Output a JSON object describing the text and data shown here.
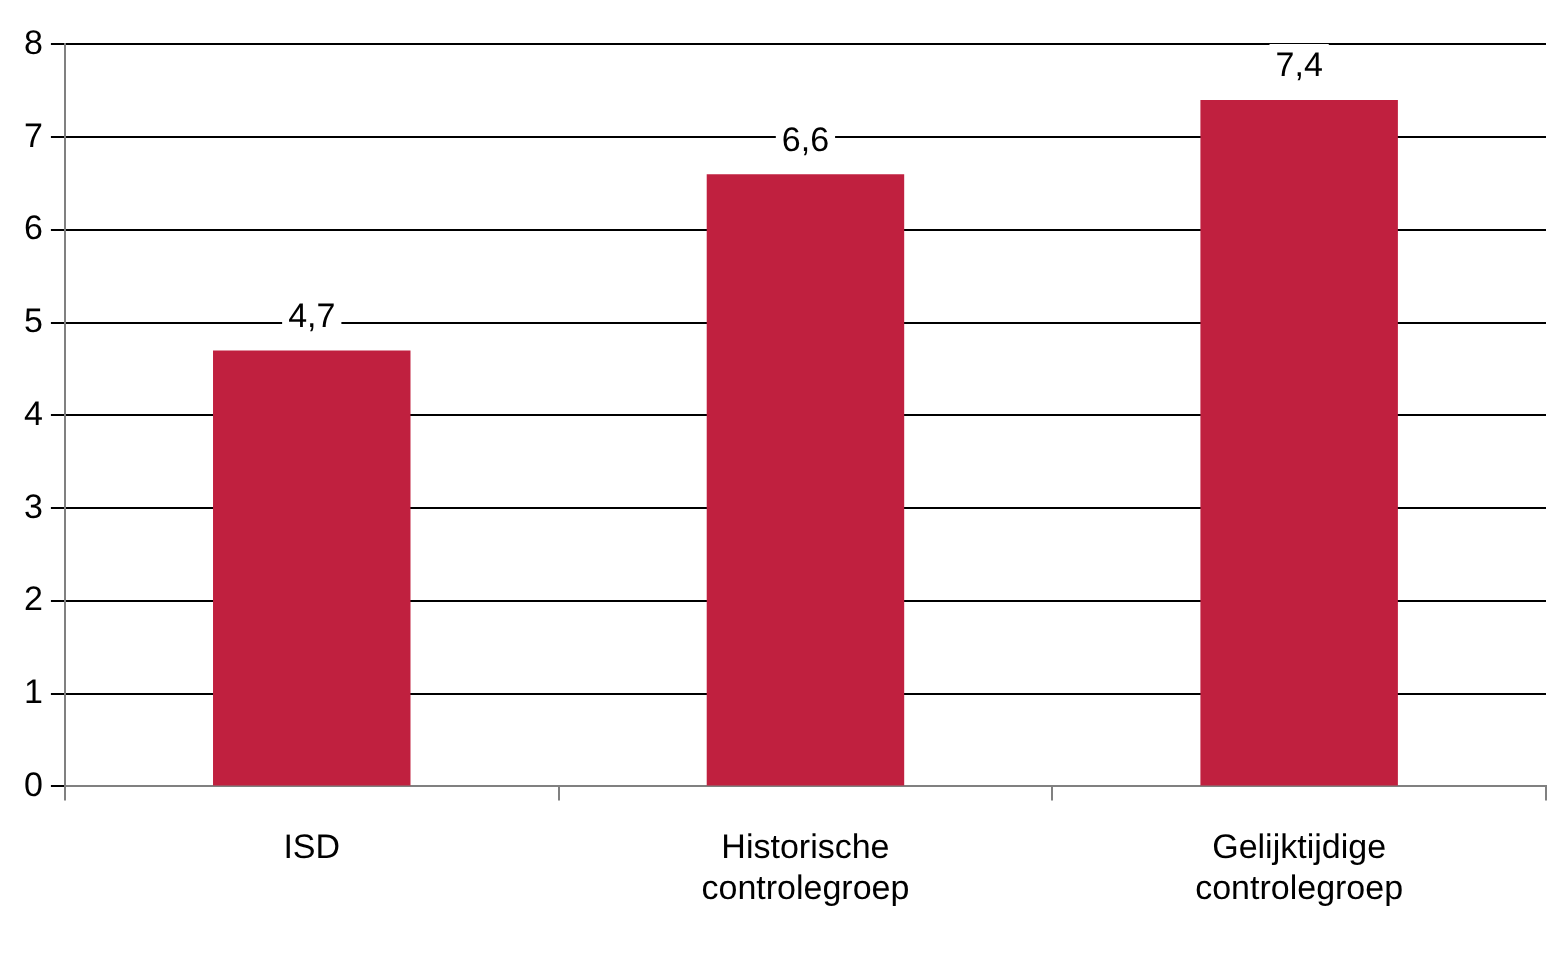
{
  "chart_data": {
    "type": "bar",
    "categories": [
      "ISD",
      "Historische controlegroep",
      "Gelijktijdige controlegroep"
    ],
    "values": [
      4.7,
      6.6,
      7.4
    ],
    "value_labels": [
      "4,7",
      "6,6",
      "7,4"
    ],
    "color": "#c0203f",
    "ylim": [
      0,
      8
    ],
    "yticks": [
      0,
      1,
      2,
      3,
      4,
      5,
      6,
      7,
      8
    ],
    "grid": "y",
    "legend": false
  }
}
